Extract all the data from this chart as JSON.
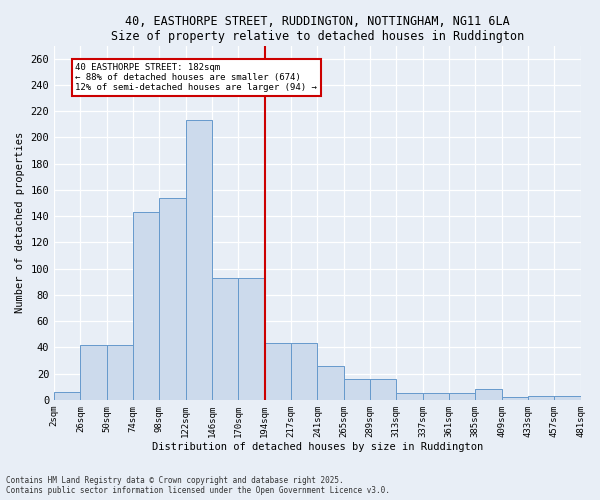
{
  "title": "40, EASTHORPE STREET, RUDDINGTON, NOTTINGHAM, NG11 6LA",
  "subtitle": "Size of property relative to detached houses in Ruddington",
  "xlabel": "Distribution of detached houses by size in Ruddington",
  "ylabel": "Number of detached properties",
  "bar_color": "#ccdaec",
  "bar_edge_color": "#6699cc",
  "bin_labels": [
    "2sqm",
    "26sqm",
    "50sqm",
    "74sqm",
    "98sqm",
    "122sqm",
    "146sqm",
    "170sqm",
    "194sqm",
    "217sqm",
    "241sqm",
    "265sqm",
    "289sqm",
    "313sqm",
    "337sqm",
    "361sqm",
    "385sqm",
    "409sqm",
    "433sqm",
    "457sqm",
    "481sqm"
  ],
  "bar_heights": [
    6,
    42,
    42,
    143,
    154,
    213,
    93,
    93,
    43,
    43,
    26,
    16,
    16,
    5,
    5,
    5,
    8,
    2,
    3,
    3,
    0
  ],
  "yticks": [
    0,
    20,
    40,
    60,
    80,
    100,
    120,
    140,
    160,
    180,
    200,
    220,
    240,
    260
  ],
  "vline_pos": 8.0,
  "annotation_line1": "40 EASTHORPE STREET: 182sqm",
  "annotation_line2": "← 88% of detached houses are smaller (674)",
  "annotation_line3": "12% of semi-detached houses are larger (94) →",
  "footer1": "Contains HM Land Registry data © Crown copyright and database right 2025.",
  "footer2": "Contains public sector information licensed under the Open Government Licence v3.0.",
  "bg_color": "#e8eef6",
  "grid_color": "#c8d4e4"
}
